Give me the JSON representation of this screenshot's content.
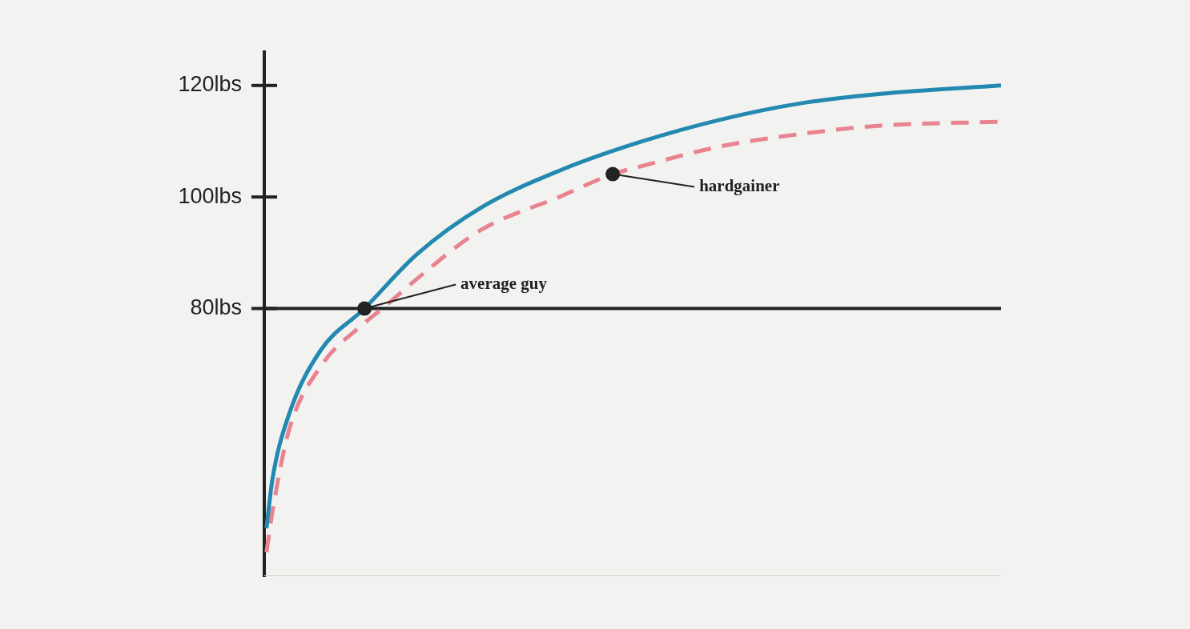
{
  "chart_data": {
    "type": "line",
    "xlim": [
      0,
      100
    ],
    "ylim": [
      32,
      126
    ],
    "yticks": [
      {
        "value": 80,
        "label": "80lbs"
      },
      {
        "value": 100,
        "label": "100lbs"
      },
      {
        "value": 120,
        "label": "120lbs"
      }
    ],
    "tick_labels": "y",
    "grid": false,
    "reference_line": 80,
    "series": [
      {
        "color": "#2389b0",
        "line_style": "solid",
        "x": [
          0.3,
          1.1,
          3.3,
          7.6,
          13.6,
          20.7,
          29.3,
          40.2,
          51.1,
          62,
          72.8,
          83.7,
          100
        ],
        "values": [
          40.6,
          49.3,
          60.8,
          72.4,
          80,
          89.7,
          98,
          104.8,
          109.9,
          113.9,
          116.8,
          118.5,
          120
        ]
      },
      {
        "color": "#e8838f",
        "line_style": "dashed",
        "x": [
          0.3,
          1.1,
          3.3,
          7.6,
          13.6,
          16.3,
          20.7,
          29.3,
          40.2,
          47.3,
          51.1,
          62,
          72.8,
          83.7,
          100
        ],
        "values": [
          36.3,
          43.5,
          57.9,
          69.5,
          77.4,
          80.3,
          85.3,
          94,
          100.1,
          104.1,
          105.5,
          109.1,
          111.3,
          112.8,
          113.5
        ]
      }
    ],
    "annotations": [
      {
        "text": "average guy",
        "x": 13.6,
        "y": 80
      },
      {
        "text": "hardgainer",
        "x": 47.3,
        "y": 104.1
      }
    ]
  }
}
